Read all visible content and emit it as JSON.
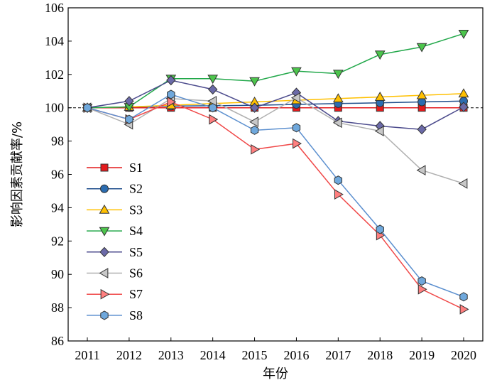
{
  "chart_data": {
    "type": "line",
    "xlabel": "年份",
    "ylabel": "影响因素贡献率/%",
    "x": [
      2011,
      2012,
      2013,
      2014,
      2015,
      2016,
      2017,
      2018,
      2019,
      2020
    ],
    "ylim": [
      86,
      106
    ],
    "yticks": [
      86,
      88,
      90,
      92,
      94,
      96,
      98,
      100,
      102,
      104,
      106
    ],
    "reference_line": {
      "y": 100,
      "style": "dashed",
      "color": "#000000"
    },
    "grid": false,
    "legend_position": "bottom-left",
    "series": [
      {
        "name": "S1",
        "color": "#e41a1c",
        "line_color": "#e41a1c",
        "marker": "square",
        "values": [
          100,
          100.0,
          100.0,
          100.0,
          100.0,
          100.0,
          100.0,
          100.0,
          100.0,
          100.0
        ]
      },
      {
        "name": "S2",
        "color": "#2b6cb0",
        "line_color": "#1f4e8c",
        "marker": "circle",
        "values": [
          100,
          100.05,
          100.1,
          100.12,
          100.15,
          100.2,
          100.25,
          100.3,
          100.35,
          100.4
        ]
      },
      {
        "name": "S3",
        "color": "#ffc000",
        "line_color": "#ffc000",
        "marker": "triangle-up",
        "values": [
          100,
          100.05,
          100.15,
          100.25,
          100.35,
          100.45,
          100.55,
          100.65,
          100.75,
          100.85
        ]
      },
      {
        "name": "S4",
        "color": "#4cc54c",
        "line_color": "#22a84a",
        "marker": "triangle-down",
        "values": [
          100,
          100.05,
          101.75,
          101.75,
          101.6,
          102.2,
          102.05,
          103.2,
          103.65,
          104.45
        ]
      },
      {
        "name": "S5",
        "color": "#6b6aa8",
        "line_color": "#4b4a8c",
        "marker": "diamond",
        "values": [
          100,
          100.4,
          101.65,
          101.1,
          100.0,
          100.9,
          99.2,
          98.9,
          98.7,
          100.05
        ]
      },
      {
        "name": "S6",
        "color": "#c8c8c8",
        "line_color": "#b0b0b0",
        "marker": "triangle-left",
        "values": [
          100,
          99.0,
          100.55,
          100.4,
          99.15,
          100.6,
          99.1,
          98.6,
          96.25,
          95.45
        ]
      },
      {
        "name": "S7",
        "color": "#ff7f7f",
        "line_color": "#f04848",
        "marker": "triangle-right",
        "values": [
          100,
          99.3,
          100.35,
          99.3,
          97.5,
          97.85,
          94.8,
          92.35,
          89.1,
          87.9
        ]
      },
      {
        "name": "S8",
        "color": "#6fa8dc",
        "line_color": "#5b8fcf",
        "marker": "hexagon",
        "values": [
          100,
          99.3,
          100.8,
          100.0,
          98.65,
          98.8,
          95.65,
          92.7,
          89.6,
          88.65
        ]
      }
    ]
  }
}
